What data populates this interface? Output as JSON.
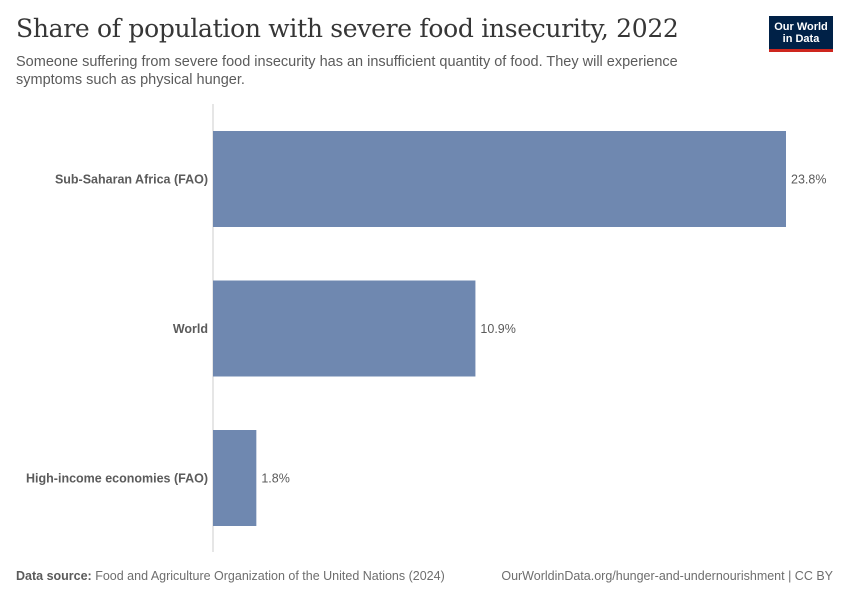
{
  "header": {
    "title": "Share of population with severe food insecurity, 2022",
    "subtitle": "Someone suffering from severe food insecurity has an insufficient quantity of food. They will experience symptoms such as physical hunger.",
    "logo_line1": "Our World",
    "logo_line2": "in Data"
  },
  "chart_data": {
    "type": "bar",
    "orientation": "horizontal",
    "categories": [
      "Sub-Saharan Africa (FAO)",
      "World",
      "High-income economies (FAO)"
    ],
    "values": [
      23.8,
      10.9,
      1.8
    ],
    "value_labels": [
      "23.8%",
      "10.9%",
      "1.8%"
    ],
    "unit": "%",
    "bar_color": "#6f88b0",
    "grid": false
  },
  "footer": {
    "source_label": "Data source:",
    "source_text": "Food and Agriculture Organization of the United Nations (2024)",
    "url_license": "OurWorldinData.org/hunger-and-undernourishment | CC BY"
  }
}
